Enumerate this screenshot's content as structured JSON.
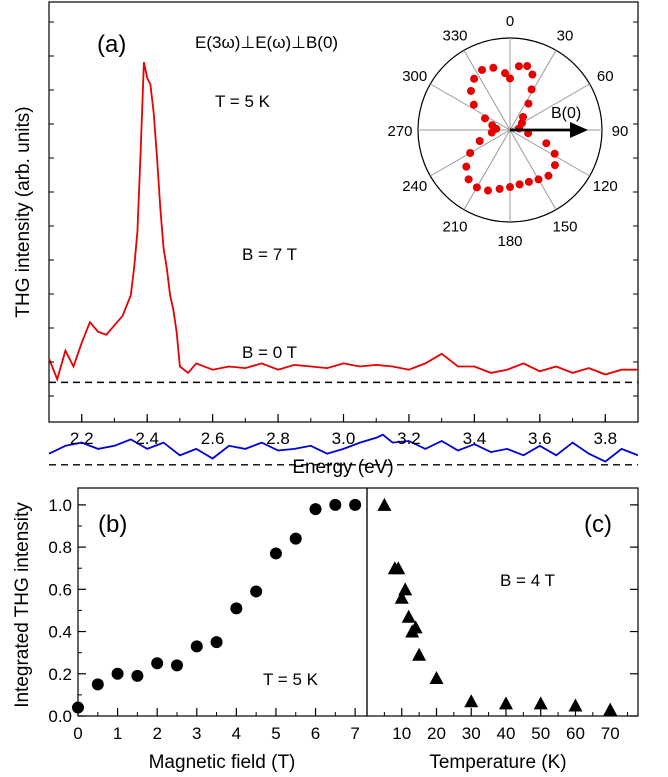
{
  "chart_data": [
    {
      "panel": "(a)",
      "type": "line",
      "xlabel": "Energy (eV)",
      "ylabel": "THG intensity (arb. units)",
      "xlim": [
        2.1,
        3.9
      ],
      "xticks": [
        "2.2",
        "2.4",
        "2.6",
        "2.8",
        "3.0",
        "3.2",
        "3.4",
        "3.6",
        "3.8"
      ],
      "xtick_values": [
        2.2,
        2.4,
        2.6,
        2.8,
        3.0,
        3.2,
        3.4,
        3.6,
        3.8
      ],
      "ylim": [
        -0.25,
        2.4
      ],
      "annotations": {
        "panel_label": "(a)",
        "config": "E(3ω)⊥E(ω)⊥B(0)",
        "temperature": "T = 5 K",
        "b7": "B = 7 T",
        "b0": "B = 0 T"
      },
      "colors": {
        "b7": "#e60000",
        "b0": "#0000d8",
        "baseline": "#000000"
      },
      "series": [
        {
          "name": "B = 7 T",
          "baseline": 0.0,
          "x": [
            2.1,
            2.125,
            2.15,
            2.175,
            2.2,
            2.225,
            2.25,
            2.275,
            2.3,
            2.325,
            2.35,
            2.36,
            2.37,
            2.38,
            2.39,
            2.4,
            2.41,
            2.42,
            2.43,
            2.44,
            2.45,
            2.46,
            2.47,
            2.48,
            2.49,
            2.5,
            2.525,
            2.55,
            2.6,
            2.65,
            2.7,
            2.75,
            2.8,
            2.85,
            2.9,
            2.95,
            3.0,
            3.05,
            3.1,
            3.15,
            3.2,
            3.25,
            3.3,
            3.35,
            3.4,
            3.45,
            3.5,
            3.55,
            3.6,
            3.65,
            3.7,
            3.75,
            3.8,
            3.85,
            3.9
          ],
          "y": [
            0.15,
            0.02,
            0.2,
            0.1,
            0.25,
            0.38,
            0.32,
            0.3,
            0.36,
            0.42,
            0.55,
            0.72,
            0.95,
            1.45,
            2.02,
            1.92,
            1.88,
            1.7,
            1.42,
            1.1,
            0.85,
            0.72,
            0.55,
            0.46,
            0.32,
            0.1,
            0.06,
            0.12,
            0.08,
            0.1,
            0.09,
            0.12,
            0.08,
            0.11,
            0.1,
            0.09,
            0.12,
            0.1,
            0.11,
            0.1,
            0.08,
            0.12,
            0.18,
            0.1,
            0.1,
            0.06,
            0.08,
            0.12,
            0.07,
            0.1,
            0.06,
            0.09,
            0.05,
            0.08,
            0.08
          ]
        },
        {
          "name": "B = 0 T",
          "baseline": -0.52,
          "x": [
            2.1,
            2.15,
            2.2,
            2.25,
            2.3,
            2.35,
            2.4,
            2.45,
            2.5,
            2.55,
            2.6,
            2.65,
            2.7,
            2.75,
            2.8,
            2.85,
            2.9,
            2.95,
            3.0,
            3.05,
            3.1,
            3.12,
            3.15,
            3.2,
            3.25,
            3.3,
            3.35,
            3.4,
            3.45,
            3.5,
            3.55,
            3.6,
            3.65,
            3.7,
            3.75,
            3.8,
            3.85,
            3.9
          ],
          "y": [
            -0.45,
            -0.4,
            -0.38,
            -0.42,
            -0.4,
            -0.36,
            -0.42,
            -0.38,
            -0.46,
            -0.42,
            -0.48,
            -0.4,
            -0.42,
            -0.38,
            -0.43,
            -0.42,
            -0.4,
            -0.45,
            -0.42,
            -0.38,
            -0.35,
            -0.33,
            -0.38,
            -0.37,
            -0.42,
            -0.37,
            -0.43,
            -0.39,
            -0.44,
            -0.42,
            -0.46,
            -0.4,
            -0.46,
            -0.38,
            -0.45,
            -0.5,
            -0.42,
            -0.46
          ]
        }
      ],
      "inset": {
        "type": "polar",
        "angle_labels": [
          "0",
          "30",
          "60",
          "90",
          "120",
          "150",
          "180",
          "210",
          "240",
          "270",
          "300",
          "330"
        ],
        "arrow_label": "B(0)",
        "points": [
          {
            "a": 0,
            "r": 0.56
          },
          {
            "a": 8,
            "r": 0.7
          },
          {
            "a": 15,
            "r": 0.72
          },
          {
            "a": 22,
            "r": 0.65
          },
          {
            "a": 28,
            "r": 0.5
          },
          {
            "a": 35,
            "r": 0.35
          },
          {
            "a": 45,
            "r": 0.2
          },
          {
            "a": 60,
            "r": 0.15
          },
          {
            "a": 80,
            "r": 0.1
          },
          {
            "a": 100,
            "r": 0.2
          },
          {
            "a": 110,
            "r": 0.42
          },
          {
            "a": 118,
            "r": 0.55
          },
          {
            "a": 128,
            "r": 0.62
          },
          {
            "a": 140,
            "r": 0.65
          },
          {
            "a": 150,
            "r": 0.62
          },
          {
            "a": 160,
            "r": 0.6
          },
          {
            "a": 170,
            "r": 0.6
          },
          {
            "a": 180,
            "r": 0.62
          },
          {
            "a": 190,
            "r": 0.65
          },
          {
            "a": 200,
            "r": 0.7
          },
          {
            "a": 210,
            "r": 0.72
          },
          {
            "a": 220,
            "r": 0.7
          },
          {
            "a": 230,
            "r": 0.62
          },
          {
            "a": 240,
            "r": 0.5
          },
          {
            "a": 250,
            "r": 0.35
          },
          {
            "a": 262,
            "r": 0.2
          },
          {
            "a": 275,
            "r": 0.15
          },
          {
            "a": 285,
            "r": 0.2
          },
          {
            "a": 295,
            "r": 0.3
          },
          {
            "a": 305,
            "r": 0.48
          },
          {
            "a": 315,
            "r": 0.6
          },
          {
            "a": 325,
            "r": 0.68
          },
          {
            "a": 335,
            "r": 0.72
          },
          {
            "a": 345,
            "r": 0.7
          },
          {
            "a": 355,
            "r": 0.62
          }
        ]
      }
    },
    {
      "panel": "(b)",
      "type": "scatter",
      "xlabel": "Magnetic field (T)",
      "ylabel": "Integrated THG intensity",
      "xlim": [
        0,
        7.3
      ],
      "ylim": [
        0,
        1.08
      ],
      "xticks": [
        "0",
        "1",
        "2",
        "3",
        "4",
        "5",
        "6",
        "7"
      ],
      "xtick_values": [
        0,
        1,
        2,
        3,
        4,
        5,
        6,
        7
      ],
      "yticks": [
        "0.0",
        "0.2",
        "0.4",
        "0.6",
        "0.8",
        "1.0"
      ],
      "ytick_values": [
        0,
        0.2,
        0.4,
        0.6,
        0.8,
        1.0
      ],
      "annotations": {
        "panel_label": "(b)",
        "temperature": "T = 5 K"
      },
      "x": [
        0,
        0.5,
        1.0,
        1.5,
        2.0,
        2.5,
        3.0,
        3.5,
        4.0,
        4.5,
        5.0,
        5.5,
        6.0,
        6.5,
        7.0
      ],
      "y": [
        0.04,
        0.15,
        0.2,
        0.19,
        0.25,
        0.24,
        0.33,
        0.35,
        0.51,
        0.59,
        0.77,
        0.84,
        0.98,
        1.0,
        1.0
      ]
    },
    {
      "panel": "(c)",
      "type": "scatter",
      "xlabel": "Temperature (K)",
      "xlim": [
        0,
        78
      ],
      "ylim": [
        0,
        1.08
      ],
      "xticks": [
        "10",
        "20",
        "30",
        "40",
        "50",
        "60",
        "70"
      ],
      "xtick_values": [
        10,
        20,
        30,
        40,
        50,
        60,
        70
      ],
      "annotations": {
        "panel_label": "(c)",
        "field": "B = 4 T"
      },
      "x": [
        5,
        8,
        9,
        10,
        11,
        12,
        13,
        14,
        15,
        20,
        30,
        40,
        50,
        60,
        70
      ],
      "y": [
        1.0,
        0.7,
        0.7,
        0.56,
        0.6,
        0.47,
        0.4,
        0.42,
        0.29,
        0.18,
        0.07,
        0.06,
        0.06,
        0.05,
        0.03
      ]
    }
  ]
}
